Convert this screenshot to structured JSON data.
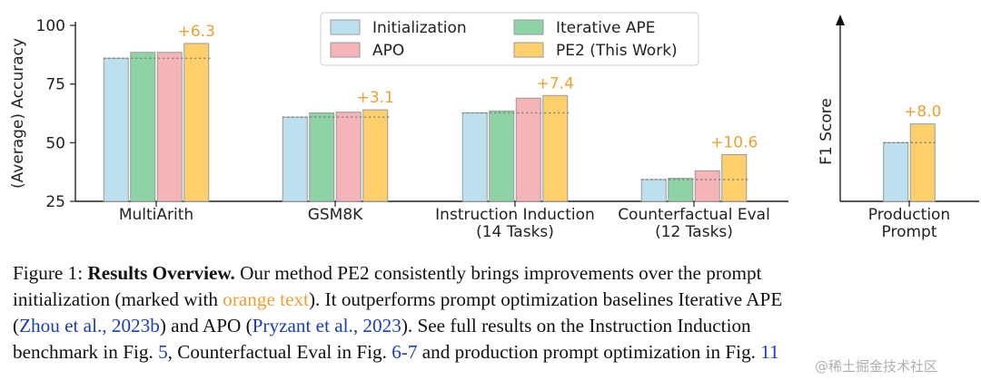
{
  "chart_data": {
    "type": "bar",
    "ylabel": "(Average) Accuracy",
    "ylim": [
      25,
      100
    ],
    "yticks": [
      "25",
      "50",
      "75",
      "100"
    ],
    "grid": false,
    "legend_position": "top-center",
    "legend": [
      "Initialization",
      "Iterative APE",
      "APO",
      "PE2 (This Work)"
    ],
    "categories": [
      [
        "MultiArith"
      ],
      [
        "GSM8K"
      ],
      [
        "Instruction Induction",
        "(14 Tasks)"
      ],
      [
        "Counterfactual Eval",
        "(12 Tasks)"
      ]
    ],
    "series": [
      {
        "name": "Initialization",
        "values": [
          86.0,
          60.9,
          62.7,
          34.3
        ]
      },
      {
        "name": "Iterative APE",
        "values": [
          88.5,
          62.7,
          63.5,
          34.8
        ]
      },
      {
        "name": "APO",
        "values": [
          88.5,
          63.0,
          69.0,
          38.0
        ]
      },
      {
        "name": "PE2 (This Work)",
        "values": [
          92.3,
          64.0,
          70.1,
          44.9
        ]
      }
    ],
    "annotations": [
      "+6.3",
      "+3.1",
      "+7.4",
      "+10.6"
    ],
    "colors": [
      "#bde0ef",
      "#8ed3a5",
      "#f4b4b8",
      "#fdd06b"
    ],
    "annotation_color": "#f0a030",
    "production": {
      "ylabel": "F1 Score",
      "category": [
        "Production",
        "Prompt"
      ],
      "values": [
        50,
        58
      ],
      "annotation": "+8.0",
      "ylim": [
        25,
        100
      ]
    }
  },
  "caption": {
    "line1": {
      "prefix": "Figure 1: ",
      "bold": "Results Overview.",
      "rest": " Our method PE2 consistently brings improvements over the prompt"
    },
    "line2": {
      "a": "initialization (marked with ",
      "orange": "orange text",
      "b": "). It outperforms prompt optimization baselines Iterative APE"
    },
    "line3": {
      "open": "(",
      "link1": "Zhou et al., 2023b",
      "mid": ") and APO (",
      "link2": "Pryzant et al., 2023",
      "rest": "). See full results on the Instruction Induction"
    },
    "line4": {
      "a": "benchmark in Fig. ",
      "ref1": "5",
      "b": ", Counterfactual Eval in Fig. ",
      "ref2": "6-7",
      "c": " and production prompt optimization in Fig. ",
      "ref3": "11"
    }
  },
  "watermark": "@稀土掘金技术社区"
}
